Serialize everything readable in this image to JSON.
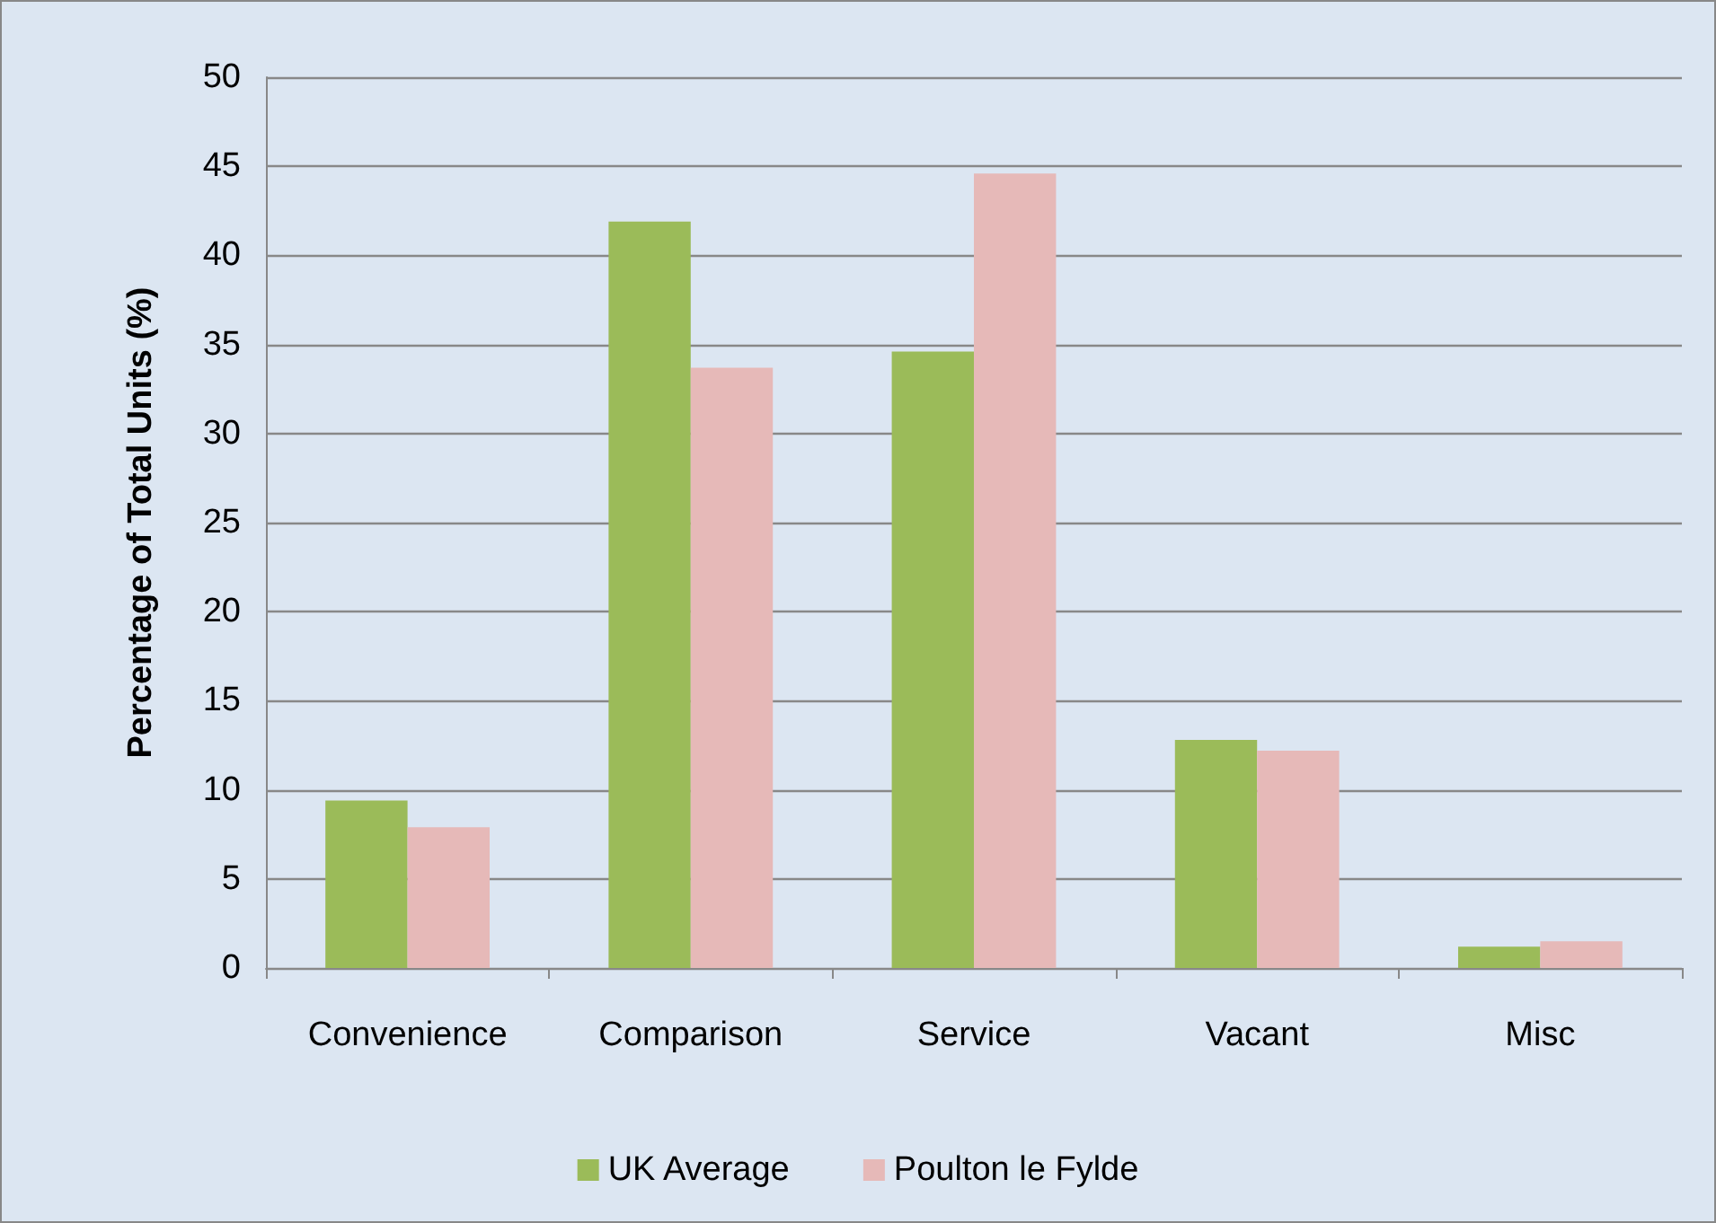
{
  "chart_data": {
    "type": "bar",
    "ylabel": "Percentage of Total Units (%)",
    "categories": [
      "Convenience",
      "Comparison",
      "Service",
      "Vacant",
      "Misc"
    ],
    "series": [
      {
        "name": "UK Average",
        "color": "#9bbb59",
        "values": [
          9.4,
          41.9,
          34.6,
          12.8,
          1.2
        ]
      },
      {
        "name": "Poulton le Fylde",
        "color": "#e6b9b8",
        "values": [
          7.9,
          33.7,
          44.6,
          12.2,
          1.5
        ]
      }
    ],
    "ylim": [
      0,
      50
    ],
    "yticks": [
      0,
      5,
      10,
      15,
      20,
      25,
      30,
      35,
      40,
      45,
      50
    ],
    "grid": "y",
    "legend": "bottom"
  }
}
